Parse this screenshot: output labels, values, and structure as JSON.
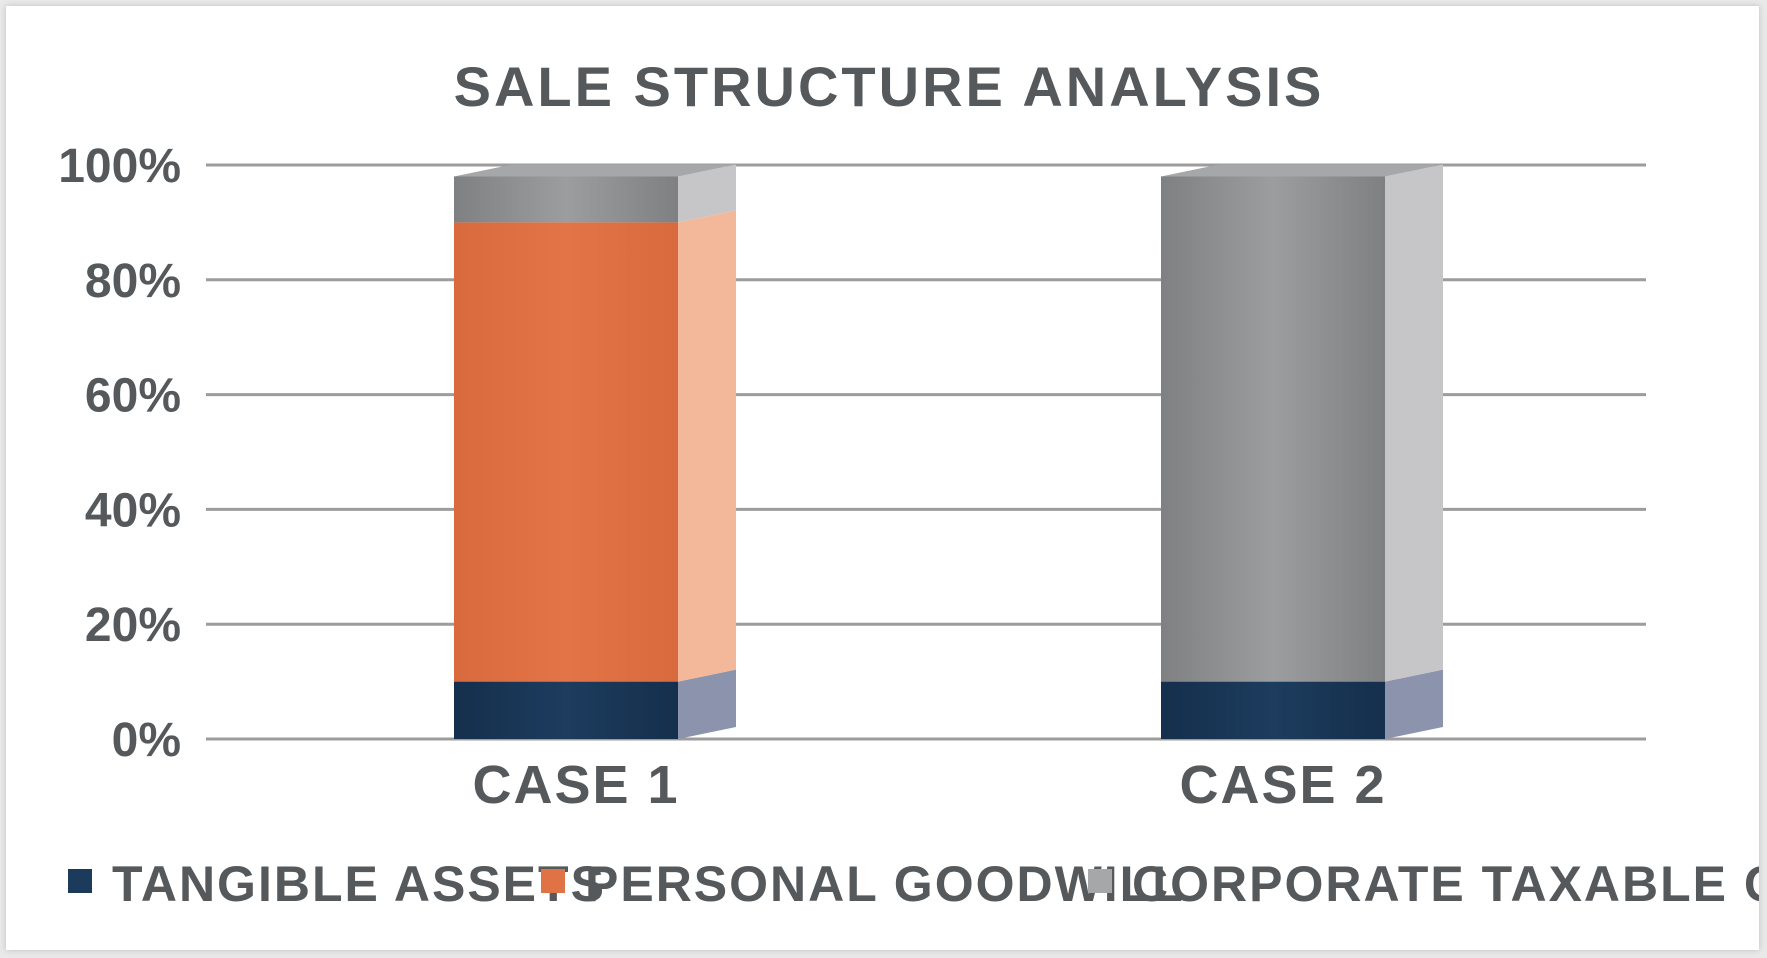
{
  "chart_data": {
    "type": "bar",
    "stacked": true,
    "title": "SALE STRUCTURE ANALYSIS",
    "categories": [
      "CASE 1",
      "CASE 2"
    ],
    "ylim": [
      0,
      100
    ],
    "yticks": [
      "0%",
      "20%",
      "40%",
      "60%",
      "80%",
      "100%"
    ],
    "grid": true,
    "legend_position": "bottom",
    "series": [
      {
        "name": "TANGIBLE ASSETS",
        "color": "#1b3a5c",
        "values": [
          10,
          10
        ]
      },
      {
        "name": "PERSONAL GOODWILL",
        "color": "#e07345",
        "values": [
          80,
          0
        ]
      },
      {
        "name": "CORPORATE TAXABLE GAIN",
        "color": "#8a8b8d",
        "values": [
          8,
          88
        ]
      }
    ]
  }
}
